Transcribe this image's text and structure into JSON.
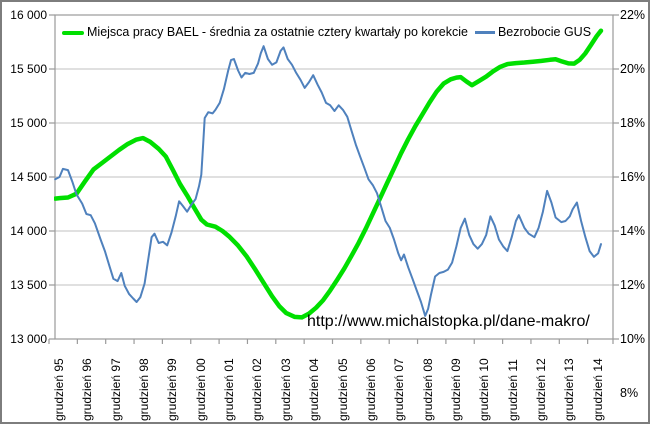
{
  "chart_data": {
    "type": "line",
    "title": "",
    "annotation": "http://www.michalstopka.pl/dane-makro/",
    "left_axis": {
      "min": 13000,
      "max": 16000,
      "step": 500,
      "tick_labels": [
        "16 000",
        "15 500",
        "15 000",
        "14 500",
        "14 000",
        "13 500",
        "13 000"
      ]
    },
    "right_axis": {
      "min": 8,
      "max": 22,
      "step": 2,
      "tick_labels": [
        "22%",
        "20%",
        "18%",
        "16%",
        "14%",
        "12%",
        "10%",
        "8%"
      ]
    },
    "x_axis": {
      "tick_labels": [
        "grudzień 95",
        "grudzień 96",
        "grudzień 97",
        "grudzień 98",
        "grudzień 99",
        "grudzień 00",
        "grudzień 01",
        "grudzień 02",
        "grudzień 03",
        "grudzień 04",
        "grudzień 05",
        "grudzień 06",
        "grudzień 07",
        "grudzień 08",
        "grudzień 09",
        "grudzień 10",
        "grudzień 11",
        "grudzień 12",
        "grudzień 13",
        "grudzień 14"
      ]
    },
    "grid": "horizontal-only",
    "legend_position": "top-inside",
    "colors": {
      "bael_green": "#00DF00",
      "gus_blue": "#4F81BD",
      "gridline": "#C2C2C2",
      "axis_border": "#9A9A9A",
      "text": "#000000"
    },
    "series": [
      {
        "name": "Miejsca pracy BAEL - średnia za ostatnie cztery kwartały po korekcie",
        "axis": "left",
        "color": "#00DF00",
        "stroke_width": 4.5,
        "points": [
          [
            -0.15,
            14300
          ],
          [
            0,
            14305
          ],
          [
            0.3,
            14310
          ],
          [
            0.6,
            14345
          ],
          [
            0.9,
            14460
          ],
          [
            1.2,
            14570
          ],
          [
            1.5,
            14630
          ],
          [
            1.8,
            14690
          ],
          [
            2.1,
            14750
          ],
          [
            2.4,
            14805
          ],
          [
            2.7,
            14845
          ],
          [
            2.95,
            14860
          ],
          [
            3.2,
            14825
          ],
          [
            3.5,
            14760
          ],
          [
            3.75,
            14690
          ],
          [
            4.0,
            14565
          ],
          [
            4.25,
            14435
          ],
          [
            4.5,
            14330
          ],
          [
            4.75,
            14215
          ],
          [
            5.0,
            14105
          ],
          [
            5.2,
            14060
          ],
          [
            5.5,
            14040
          ],
          [
            5.75,
            14000
          ],
          [
            6.0,
            13945
          ],
          [
            6.3,
            13865
          ],
          [
            6.6,
            13765
          ],
          [
            6.9,
            13645
          ],
          [
            7.2,
            13520
          ],
          [
            7.5,
            13395
          ],
          [
            7.75,
            13305
          ],
          [
            8.0,
            13240
          ],
          [
            8.3,
            13205
          ],
          [
            8.55,
            13200
          ],
          [
            8.8,
            13235
          ],
          [
            9.05,
            13290
          ],
          [
            9.3,
            13360
          ],
          [
            9.55,
            13450
          ],
          [
            9.8,
            13550
          ],
          [
            10.05,
            13655
          ],
          [
            10.3,
            13770
          ],
          [
            10.55,
            13890
          ],
          [
            10.8,
            14020
          ],
          [
            11.05,
            14160
          ],
          [
            11.3,
            14300
          ],
          [
            11.55,
            14440
          ],
          [
            11.8,
            14580
          ],
          [
            12.05,
            14720
          ],
          [
            12.3,
            14850
          ],
          [
            12.55,
            14970
          ],
          [
            12.8,
            15080
          ],
          [
            13.05,
            15190
          ],
          [
            13.3,
            15290
          ],
          [
            13.55,
            15365
          ],
          [
            13.8,
            15405
          ],
          [
            14.0,
            15420
          ],
          [
            14.15,
            15425
          ],
          [
            14.35,
            15385
          ],
          [
            14.55,
            15350
          ],
          [
            14.8,
            15390
          ],
          [
            15.05,
            15430
          ],
          [
            15.3,
            15480
          ],
          [
            15.55,
            15520
          ],
          [
            15.8,
            15545
          ],
          [
            16.1,
            15555
          ],
          [
            16.4,
            15560
          ],
          [
            16.7,
            15568
          ],
          [
            17.0,
            15575
          ],
          [
            17.3,
            15585
          ],
          [
            17.5,
            15590
          ],
          [
            17.7,
            15572
          ],
          [
            17.95,
            15552
          ],
          [
            18.15,
            15550
          ],
          [
            18.35,
            15585
          ],
          [
            18.55,
            15645
          ],
          [
            18.75,
            15725
          ],
          [
            18.95,
            15805
          ],
          [
            19.1,
            15855
          ]
        ]
      },
      {
        "name": "Bezrobocie GUS",
        "axis": "right",
        "color": "#4F81BD",
        "stroke_width": 2,
        "points": [
          [
            -0.15,
            14.9
          ],
          [
            0,
            15.0
          ],
          [
            0.12,
            15.35
          ],
          [
            0.3,
            15.3
          ],
          [
            0.45,
            14.8
          ],
          [
            0.6,
            14.25
          ],
          [
            0.8,
            13.85
          ],
          [
            0.95,
            13.4
          ],
          [
            1.1,
            13.35
          ],
          [
            1.25,
            13.0
          ],
          [
            1.45,
            12.3
          ],
          [
            1.6,
            11.8
          ],
          [
            1.75,
            11.2
          ],
          [
            1.9,
            10.6
          ],
          [
            2.05,
            10.5
          ],
          [
            2.18,
            10.85
          ],
          [
            2.3,
            10.3
          ],
          [
            2.45,
            9.95
          ],
          [
            2.6,
            9.75
          ],
          [
            2.72,
            9.6
          ],
          [
            2.85,
            9.8
          ],
          [
            3.0,
            10.4
          ],
          [
            3.1,
            11.2
          ],
          [
            3.25,
            12.4
          ],
          [
            3.35,
            12.55
          ],
          [
            3.5,
            12.15
          ],
          [
            3.65,
            12.2
          ],
          [
            3.8,
            12.05
          ],
          [
            3.95,
            12.6
          ],
          [
            4.1,
            13.3
          ],
          [
            4.22,
            13.95
          ],
          [
            4.35,
            13.75
          ],
          [
            4.5,
            13.5
          ],
          [
            4.65,
            13.8
          ],
          [
            4.8,
            14.05
          ],
          [
            4.92,
            14.6
          ],
          [
            5.0,
            15.1
          ],
          [
            5.06,
            16.3
          ],
          [
            5.12,
            17.55
          ],
          [
            5.25,
            17.8
          ],
          [
            5.4,
            17.75
          ],
          [
            5.5,
            17.9
          ],
          [
            5.65,
            18.2
          ],
          [
            5.8,
            18.8
          ],
          [
            5.95,
            19.6
          ],
          [
            6.05,
            20.05
          ],
          [
            6.15,
            20.1
          ],
          [
            6.3,
            19.6
          ],
          [
            6.42,
            19.3
          ],
          [
            6.55,
            19.5
          ],
          [
            6.7,
            19.45
          ],
          [
            6.85,
            19.5
          ],
          [
            7.0,
            19.9
          ],
          [
            7.1,
            20.35
          ],
          [
            7.2,
            20.65
          ],
          [
            7.35,
            20.1
          ],
          [
            7.5,
            19.85
          ],
          [
            7.65,
            19.95
          ],
          [
            7.8,
            20.45
          ],
          [
            7.9,
            20.6
          ],
          [
            8.05,
            20.1
          ],
          [
            8.2,
            19.85
          ],
          [
            8.35,
            19.5
          ],
          [
            8.5,
            19.2
          ],
          [
            8.65,
            18.85
          ],
          [
            8.8,
            19.1
          ],
          [
            8.95,
            19.4
          ],
          [
            9.1,
            19.0
          ],
          [
            9.25,
            18.65
          ],
          [
            9.4,
            18.2
          ],
          [
            9.55,
            18.1
          ],
          [
            9.7,
            17.85
          ],
          [
            9.85,
            18.1
          ],
          [
            10.0,
            17.9
          ],
          [
            10.15,
            17.6
          ],
          [
            10.3,
            17.0
          ],
          [
            10.45,
            16.4
          ],
          [
            10.6,
            15.9
          ],
          [
            10.75,
            15.4
          ],
          [
            10.9,
            14.9
          ],
          [
            11.05,
            14.65
          ],
          [
            11.2,
            14.3
          ],
          [
            11.35,
            13.7
          ],
          [
            11.5,
            13.1
          ],
          [
            11.65,
            12.8
          ],
          [
            11.8,
            12.3
          ],
          [
            11.95,
            11.7
          ],
          [
            12.05,
            11.4
          ],
          [
            12.15,
            11.65
          ],
          [
            12.3,
            11.1
          ],
          [
            12.45,
            10.6
          ],
          [
            12.6,
            10.1
          ],
          [
            12.75,
            9.6
          ],
          [
            12.9,
            9.0
          ],
          [
            13.0,
            9.3
          ],
          [
            13.1,
            9.9
          ],
          [
            13.25,
            10.7
          ],
          [
            13.4,
            10.85
          ],
          [
            13.55,
            10.9
          ],
          [
            13.7,
            11.0
          ],
          [
            13.85,
            11.3
          ],
          [
            14.0,
            12.0
          ],
          [
            14.15,
            12.8
          ],
          [
            14.3,
            13.2
          ],
          [
            14.45,
            12.5
          ],
          [
            14.6,
            12.1
          ],
          [
            14.75,
            11.9
          ],
          [
            14.9,
            12.1
          ],
          [
            15.05,
            12.5
          ],
          [
            15.2,
            13.3
          ],
          [
            15.35,
            12.9
          ],
          [
            15.5,
            12.3
          ],
          [
            15.65,
            12.0
          ],
          [
            15.8,
            11.8
          ],
          [
            15.95,
            12.4
          ],
          [
            16.1,
            13.1
          ],
          [
            16.2,
            13.35
          ],
          [
            16.4,
            12.8
          ],
          [
            16.55,
            12.55
          ],
          [
            16.75,
            12.4
          ],
          [
            16.9,
            12.8
          ],
          [
            17.05,
            13.5
          ],
          [
            17.2,
            14.4
          ],
          [
            17.35,
            13.9
          ],
          [
            17.5,
            13.25
          ],
          [
            17.7,
            13.05
          ],
          [
            17.85,
            13.1
          ],
          [
            18.0,
            13.3
          ],
          [
            18.1,
            13.6
          ],
          [
            18.25,
            13.9
          ],
          [
            18.4,
            13.1
          ],
          [
            18.55,
            12.4
          ],
          [
            18.7,
            11.8
          ],
          [
            18.85,
            11.55
          ],
          [
            19.0,
            11.7
          ],
          [
            19.1,
            12.1
          ]
        ]
      }
    ]
  }
}
